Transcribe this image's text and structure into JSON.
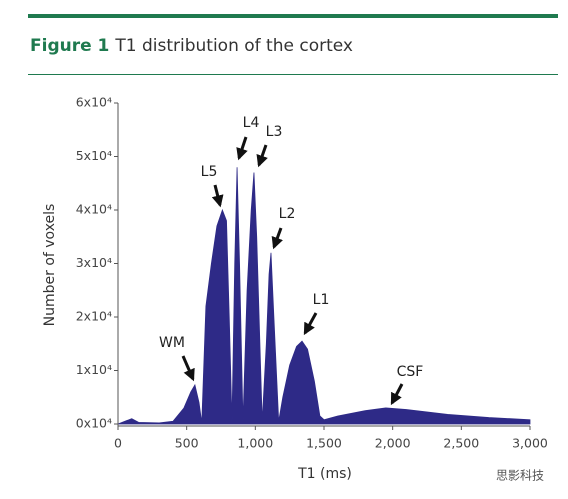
{
  "chart_data": {
    "type": "area",
    "title_label": "Figure 1",
    "title": "T1 distribution of the cortex",
    "xlabel": "T1 (ms)",
    "ylabel": "Number of voxels",
    "color": "#2e2a87",
    "x": [
      0,
      100,
      150,
      300,
      400,
      480,
      530,
      560,
      590,
      610,
      640,
      680,
      720,
      760,
      790,
      810,
      830,
      850,
      867,
      885,
      910,
      940,
      970,
      990,
      1010,
      1050,
      1080,
      1100,
      1114,
      1135,
      1170,
      1200,
      1250,
      1300,
      1340,
      1380,
      1430,
      1470,
      1500,
      1600,
      1800,
      1950,
      2100,
      2400,
      2700,
      3000
    ],
    "values": [
      0,
      1000,
      300,
      200,
      500,
      3000,
      6000,
      7300,
      4000,
      200,
      22000,
      30000,
      37000,
      40000,
      38000,
      20000,
      500,
      30000,
      48000,
      30000,
      500,
      25000,
      40000,
      47000,
      35000,
      500,
      15000,
      28000,
      32000,
      20000,
      500,
      5000,
      11000,
      14500,
      15500,
      14000,
      8000,
      1500,
      800,
      1500,
      2500,
      3000,
      2700,
      1800,
      1200,
      800
    ],
    "xlim": [
      0,
      3000
    ],
    "xticks": [
      0,
      500,
      {
        "value": 1000,
        "label": "1,000"
      },
      {
        "value": 1500,
        "label": "1,500"
      },
      {
        "value": 2000,
        "label": "2,000"
      },
      {
        "value": 2500,
        "label": "2,500"
      },
      {
        "value": 3000,
        "label": "3,000"
      }
    ],
    "ylim": [
      0,
      60000
    ],
    "yticks": [
      {
        "value": 0,
        "label": "0x10⁴"
      },
      {
        "value": 10000,
        "label": "1x10⁴"
      },
      {
        "value": 20000,
        "label": "2x10⁴"
      },
      {
        "value": 30000,
        "label": "3x10⁴"
      },
      {
        "value": 40000,
        "label": "4x10⁴"
      },
      {
        "value": 50000,
        "label": "5x10⁴"
      },
      {
        "value": 60000,
        "label": "6x10⁴"
      }
    ],
    "annotations": [
      "WM",
      "L5",
      "L4",
      "L3",
      "L2",
      "L1",
      "CSF"
    ],
    "watermark": "思影科技"
  }
}
